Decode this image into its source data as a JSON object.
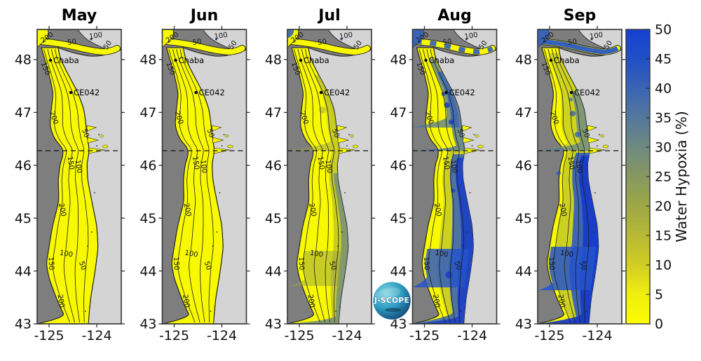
{
  "months": [
    {
      "label": "May",
      "hypoxia_extent": "none"
    },
    {
      "label": "Jun",
      "hypoxia_extent": "none"
    },
    {
      "label": "Jul",
      "hypoxia_extent": "slight"
    },
    {
      "label": "Aug",
      "hypoxia_extent": "moderate"
    },
    {
      "label": "Sep",
      "hypoxia_extent": "extensive"
    }
  ],
  "axis": {
    "lat_ticks": [
      "48",
      "47",
      "46",
      "45",
      "44",
      "43"
    ],
    "lon_ticks": [
      "-125",
      "-124"
    ]
  },
  "stations": [
    {
      "name": "Chaba"
    },
    {
      "name": "CE042"
    }
  ],
  "contour_labels": [
    {
      "value": "200"
    },
    {
      "value": "50"
    },
    {
      "value": "100"
    },
    {
      "value": "50"
    },
    {
      "value": "150"
    },
    {
      "value": "200"
    },
    {
      "value": "50"
    },
    {
      "value": "150"
    },
    {
      "value": "100"
    },
    {
      "value": "200"
    },
    {
      "value": "100"
    },
    {
      "value": "150"
    },
    {
      "value": "50"
    },
    {
      "value": "200"
    }
  ],
  "colorbar": {
    "label": "Water Hypoxia (%)",
    "ticks": [
      "50",
      "45",
      "40",
      "35",
      "30",
      "25",
      "20",
      "15",
      "10",
      "5",
      "0"
    ],
    "min": 0,
    "max": 50
  },
  "logo": {
    "text": "J-SCOPE"
  },
  "map_colors": {
    "land": "#d4d4d4",
    "deep_ocean": "#7e7e7e",
    "shelf": "#f8f800",
    "olive": "#97a24a",
    "slate": "#4a6fa8",
    "blue": "#2453cc",
    "deep_blue": "#1539c9",
    "outline": "#1a1a1a",
    "colorbar_top": "#1540d2",
    "colorbar_bottom": "#fdfd02"
  },
  "chart_data": {
    "type": "heatmap",
    "panels": [
      "May",
      "Jun",
      "Jul",
      "Aug",
      "Sep"
    ],
    "variable": "Water Hypoxia (%)",
    "value_range": [
      0,
      50
    ],
    "colorbar_tick_step": 5,
    "lat_ticks": [
      48,
      47,
      46,
      45,
      44,
      43
    ],
    "lon_ticks": [
      -125,
      -124
    ],
    "dashed_boundary_lat": 46.25,
    "stations": [
      "Chaba",
      "CE042"
    ],
    "depth_contours_m": [
      50,
      100,
      150,
      200
    ],
    "monthly_summary": {
      "May": "~0% hypoxia across the shelf (all yellow)",
      "Jun": "~0% hypoxia across the shelf (all yellow)",
      "Jul": "slight 5-15% band along the inner shelf",
      "Aug": "20-50% nearshore; blue patches on Washington inner shelf and strong blue south of 46N over Heceta Bank",
      "Sep": "30-50% along Oregon inner shelf, strait entrance and shelf break; widespread olive-green midshelf"
    }
  }
}
